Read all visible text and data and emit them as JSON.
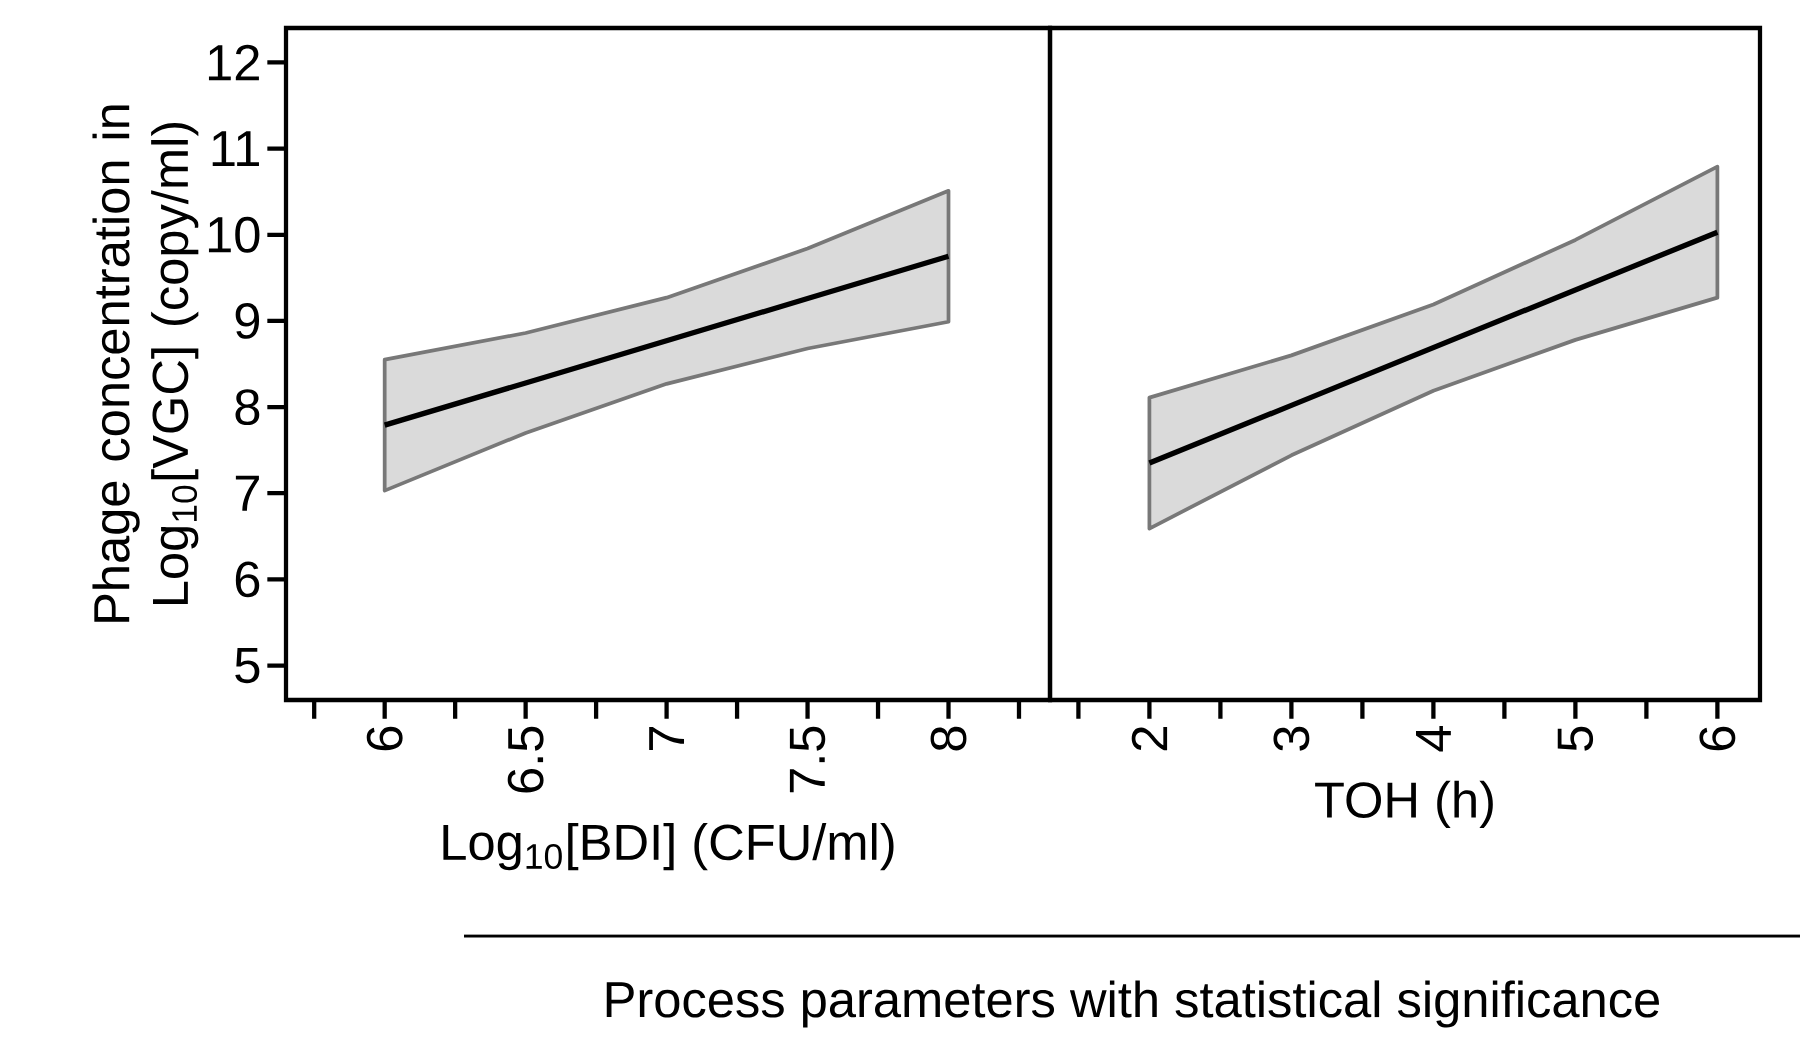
{
  "chart_data": [
    {
      "type": "line",
      "xlabel": "Log$_{10}$[BDI] (CFU/ml)",
      "ylabel": "Phage concentration in Log$_{10}$[VGC] (copy/ml)",
      "annotations": [
        "Process parameters with statistical significance"
      ],
      "xlim": [
        5.65,
        8.36
      ],
      "xticks": [
        {
          "value": 5.75,
          "label": null
        },
        6,
        {
          "value": 6.25,
          "label": null
        },
        6.5,
        {
          "value": 6.75,
          "label": null
        },
        7,
        {
          "value": 7.25,
          "label": null
        },
        7.5,
        {
          "value": 7.75,
          "label": null
        },
        8,
        {
          "value": 8.25,
          "label": null
        }
      ],
      "ylim": [
        4.6,
        12.4
      ],
      "yticks": [
        5,
        6,
        7,
        8,
        9,
        10,
        11,
        12
      ],
      "series": [
        {
          "color": "#000000",
          "x": [
            6,
            6.5,
            7,
            7.5,
            8
          ],
          "values": [
            7.79,
            8.28,
            8.77,
            9.26,
            9.75
          ],
          "lower": [
            7.03,
            7.7,
            8.27,
            8.68,
            8.99
          ],
          "upper": [
            8.55,
            8.86,
            9.27,
            9.84,
            10.51
          ]
        }
      ]
    },
    {
      "type": "line",
      "xlabel": "TOH (h)",
      "tick_labels": "x",
      "xlim": [
        1.3,
        6.3
      ],
      "xticks": [
        {
          "value": 1.5,
          "label": null
        },
        2,
        {
          "value": 2.5,
          "label": null
        },
        3,
        {
          "value": 3.5,
          "label": null
        },
        4,
        {
          "value": 4.5,
          "label": null
        },
        5,
        {
          "value": 5.5,
          "label": null
        },
        6
      ],
      "ylim": [
        4.6,
        12.4
      ],
      "series": [
        {
          "color": "#000000",
          "x": [
            2,
            3,
            4,
            5,
            6
          ],
          "values": [
            7.35,
            8.02,
            8.69,
            9.36,
            10.03
          ],
          "lower": [
            6.59,
            7.44,
            8.19,
            8.78,
            9.27
          ],
          "upper": [
            8.11,
            8.6,
            9.19,
            9.94,
            10.79
          ]
        }
      ]
    }
  ]
}
